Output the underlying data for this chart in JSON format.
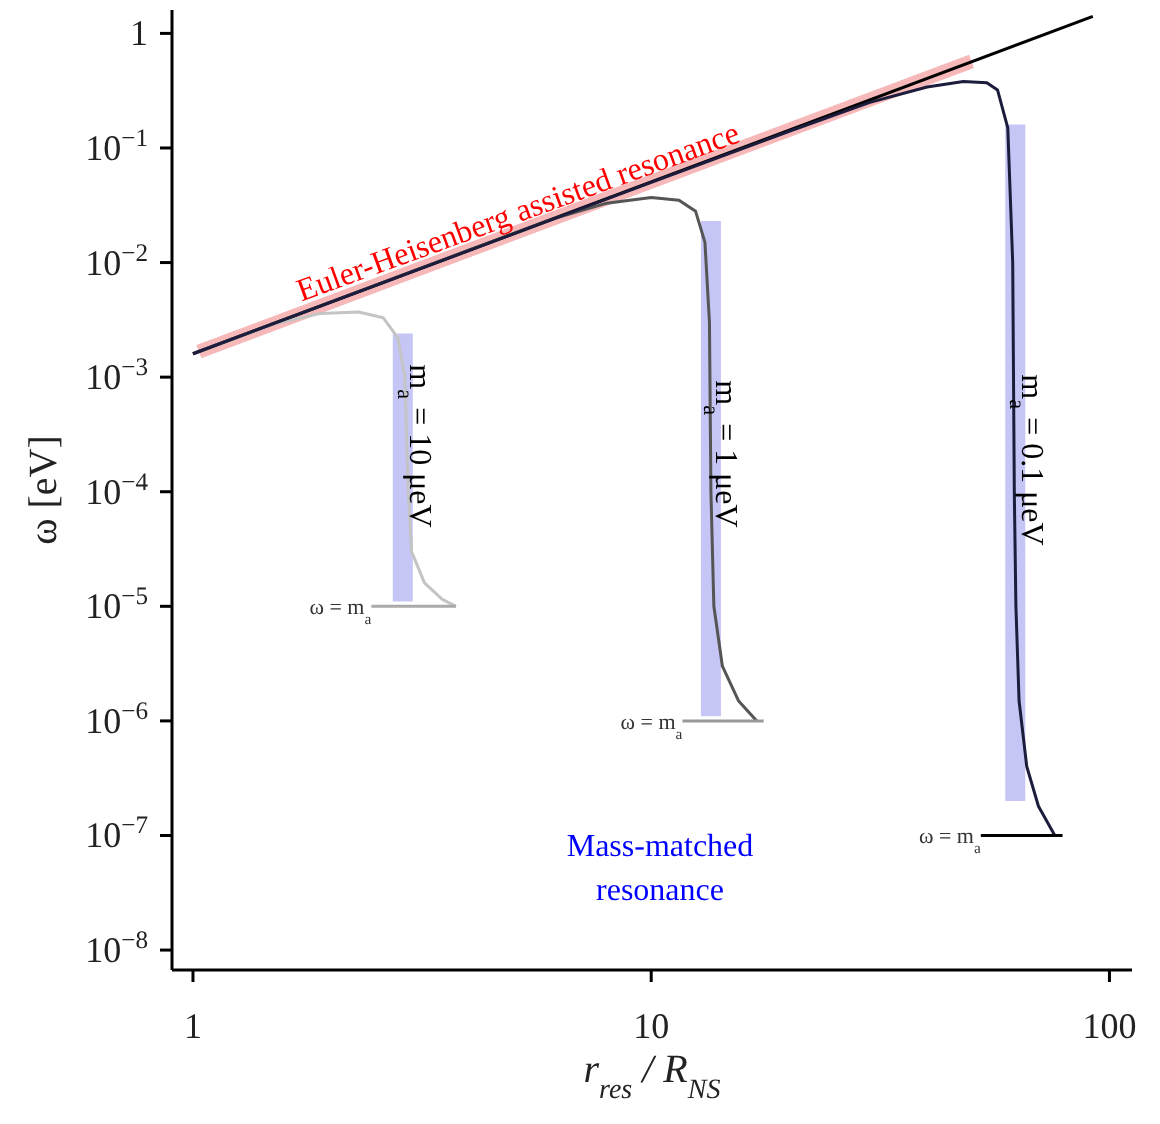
{
  "chart_data": {
    "type": "line",
    "xlabel": "r$_{res}$ / R$_{NS}$",
    "ylabel": "ω [eV]",
    "log": "xy",
    "grid": false,
    "legend": false,
    "marker": "none",
    "line_style": "solid",
    "xlim": [
      0.9,
      112
    ],
    "xticks": [
      1,
      10,
      100
    ],
    "ylim": [
      6.7e-09,
      1.6
    ],
    "yticks": [
      1,
      {
        "value": 0.1,
        "label": "10$^{−1}$"
      },
      {
        "value": 0.01,
        "label": "10$^{−2}$"
      },
      {
        "value": 0.001,
        "label": "10$^{−3}$"
      },
      {
        "value": 0.0001,
        "label": "10$^{−4}$"
      },
      {
        "value": 1e-05,
        "label": "10$^{−5}$"
      },
      {
        "value": 1e-06,
        "label": "10$^{−6}$"
      },
      {
        "value": 1e-07,
        "label": "10$^{−7}$"
      },
      {
        "value": 1e-08,
        "label": "10$^{−8}$"
      }
    ],
    "series": [
      {
        "type": "line",
        "color": "#f6b8b8",
        "x": [
          1.03,
          50
        ],
        "values": [
          0.00167,
          0.57
        ]
      },
      {
        "type": "line",
        "color": "#c6c6f6",
        "x": [
          2.87,
          2.87
        ],
        "values": [
          1.1e-05,
          0.0024
        ]
      },
      {
        "type": "line",
        "color": "#c6c6f6",
        "x": [
          13.5,
          13.5
        ],
        "values": [
          1.1e-06,
          0.023
        ]
      },
      {
        "type": "line",
        "color": "#c6c6f6",
        "x": [
          62.3,
          62.3
        ],
        "values": [
          2e-07,
          0.16
        ]
      },
      {
        "type": "line",
        "color": "#000000",
        "x": [
          1,
          92
        ],
        "values": [
          0.0016,
          1.41
        ]
      },
      {
        "type": "line",
        "color": "#c4c4c4",
        "x": [
          1,
          1.5,
          1.9,
          2.3,
          2.6,
          2.8,
          2.9,
          2.95,
          3.0,
          3.2,
          3.5,
          3.75
        ],
        "values": [
          0.0016,
          0.0029,
          0.0036,
          0.0037,
          0.0033,
          0.0022,
          0.001,
          0.0001,
          3e-05,
          1.6e-05,
          1.15e-05,
          1e-05
        ]
      },
      {
        "type": "line",
        "color": "#555555",
        "x": [
          1,
          4,
          6.3,
          8,
          10,
          11.5,
          12.5,
          13.1,
          13.4,
          13.5,
          13.7,
          14.3,
          15.5,
          17
        ],
        "values": [
          0.0016,
          0.0128,
          0.025,
          0.033,
          0.037,
          0.035,
          0.028,
          0.015,
          0.003,
          0.0001,
          1e-05,
          3e-06,
          1.5e-06,
          1e-06
        ]
      },
      {
        "type": "line",
        "color": "#1c1c3c",
        "x": [
          1,
          10,
          20,
          30,
          40,
          48,
          54,
          57,
          60,
          61.5,
          62,
          62.5,
          63.5,
          66,
          70,
          76
        ],
        "values": [
          0.0016,
          0.05,
          0.14,
          0.25,
          0.34,
          0.38,
          0.37,
          0.32,
          0.15,
          0.01,
          0.0001,
          1e-05,
          1.5e-06,
          4e-07,
          1.8e-07,
          1e-07
        ]
      },
      {
        "type": "line",
        "color": "#aaaaaa",
        "x": [
          2.45,
          3.75
        ],
        "values": [
          1e-05,
          1e-05
        ]
      },
      {
        "type": "line",
        "color": "#999999",
        "x": [
          11.7,
          17.6
        ],
        "values": [
          1e-06,
          1e-06
        ]
      },
      {
        "type": "line",
        "color": "#000000",
        "x": [
          52.4,
          79
        ],
        "values": [
          1e-07,
          1e-07
        ]
      }
    ],
    "annotations": [
      "Euler-Heisenberg assisted resonance",
      "m$_{a}$ = 10 μeV",
      "m$_{a}$ = 1 μeV",
      "m$_{a}$ = 0.1 μeV",
      {
        "text": "ω = m$_{a}$",
        "x": 2.45,
        "y": 1e-05
      },
      {
        "text": "ω = m$_{a}$",
        "x": 11.7,
        "y": 1e-06
      },
      {
        "text": "ω = m$_{a}$",
        "x": 52.4,
        "y": 1e-07
      },
      "Mass-matched\nresonance"
    ]
  }
}
